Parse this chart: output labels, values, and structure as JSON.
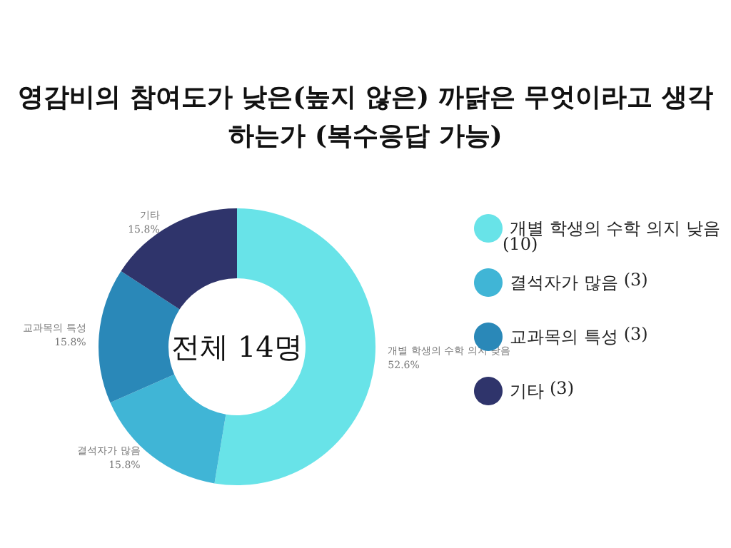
{
  "chart_data": {
    "type": "donut",
    "title": "영감비의 참여도가 낮은(높지 않은) 까닭은 무엇이라고 생각\n하는가 (복수응답 가능)",
    "categories": [
      "개별 학생의 수학 의지 낮음",
      "결석자가 많음",
      "교과목의 특성",
      "기타"
    ],
    "values": [
      52.6,
      15.8,
      15.8,
      15.8
    ],
    "colors": [
      "#68e3e8",
      "#40b5d6",
      "#2a88b8",
      "#2f346b"
    ],
    "annotations": [
      "전체 14명",
      {
        "text": "(10)",
        "x": "개별 학생의 수학 의지 낮음"
      },
      {
        "text": "(3)",
        "x": "결석자가 많음"
      },
      {
        "text": "(3)",
        "x": "교과목의 특성"
      },
      {
        "text": "(3)",
        "x": "기타"
      }
    ],
    "value_labels": [
      "52.6%",
      "15.8%",
      "15.8%",
      "15.8%"
    ],
    "legend": "right"
  }
}
